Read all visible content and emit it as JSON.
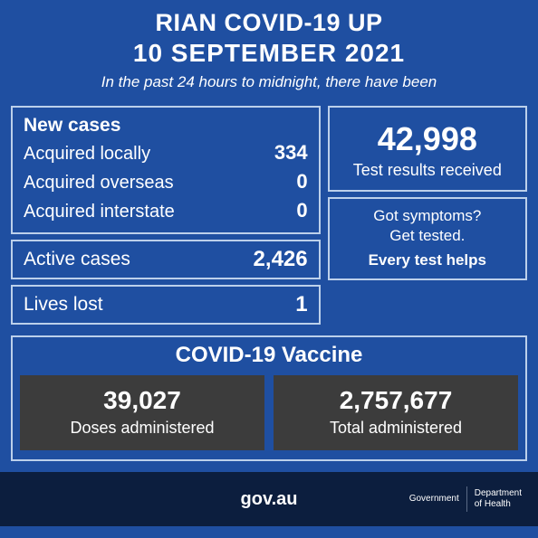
{
  "header": {
    "title": "RIAN COVID-19 UP",
    "date": "10 SEPTEMBER 2021",
    "subtitle": "In the past 24 hours to midnight, there have been"
  },
  "new_cases": {
    "title": "New cases",
    "rows": [
      {
        "label": "Acquired locally",
        "value": "334"
      },
      {
        "label": "Acquired overseas",
        "value": "0"
      },
      {
        "label": "Acquired interstate",
        "value": "0"
      }
    ]
  },
  "active": {
    "label": "Active cases",
    "value": "2,426"
  },
  "lives": {
    "label": "Lives lost",
    "value": "1"
  },
  "tests": {
    "value": "42,998",
    "label": "Test results received"
  },
  "symptoms": {
    "line1": "Got symptoms?",
    "line2": "Get tested.",
    "line3": "Every test helps"
  },
  "vaccine": {
    "title": "COVID-19 Vaccine",
    "doses": {
      "value": "39,027",
      "label": "Doses administered"
    },
    "total": {
      "value": "2,757,677",
      "label": "Total administered"
    }
  },
  "footer": {
    "url": "gov.au",
    "gov": "Government",
    "dept1": "Department",
    "dept2": "of Health"
  },
  "colors": {
    "bg": "#1f4fa1",
    "border": "#bcd0eb",
    "dark_box": "#3c3c3c",
    "footer_bg": "#0c1e3e"
  }
}
